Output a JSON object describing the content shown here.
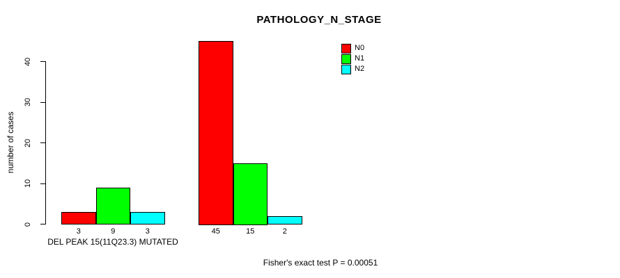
{
  "page": {
    "background": "#ffffff"
  },
  "chart_data": {
    "type": "bar",
    "title": "PATHOLOGY_N_STAGE",
    "ylabel": "number of cases",
    "xlabel": "DEL PEAK 15(11Q23.3) MUTATED",
    "footer": "Fisher's exact test P = 0.00051",
    "ylim": [
      0,
      45
    ],
    "yticks": [
      0,
      10,
      20,
      30,
      40
    ],
    "grid": false,
    "legend_position": "top-right",
    "groups": [
      {
        "label": "DEL PEAK 15(11Q23.3) MUTATED"
      },
      {
        "label": ""
      }
    ],
    "series": [
      {
        "name": "N0",
        "color": "#ff0000",
        "values": [
          3,
          45
        ]
      },
      {
        "name": "N1",
        "color": "#00ff00",
        "values": [
          9,
          15
        ]
      },
      {
        "name": "N2",
        "color": "#00ffff",
        "values": [
          3,
          2
        ]
      }
    ],
    "bar_value_labels": [
      [
        "3",
        "9",
        "3"
      ],
      [
        "45",
        "15",
        "2"
      ]
    ]
  }
}
